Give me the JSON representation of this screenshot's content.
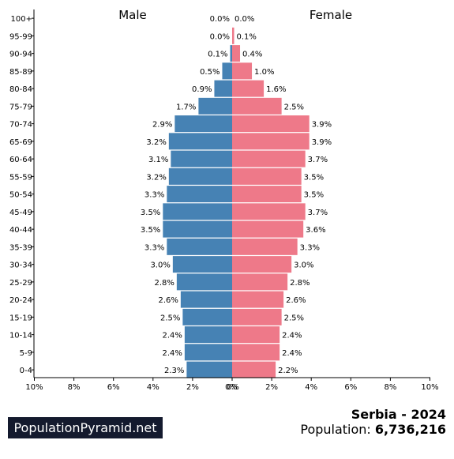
{
  "chart_data": {
    "type": "bar",
    "title": "",
    "orientation": "horizontal-back-to-back",
    "left_label": "Male",
    "right_label": "Female",
    "categories": [
      "100+",
      "95-99",
      "90-94",
      "85-89",
      "80-84",
      "75-79",
      "70-74",
      "65-69",
      "60-64",
      "55-59",
      "50-54",
      "45-49",
      "40-44",
      "35-39",
      "30-34",
      "25-29",
      "20-24",
      "15-19",
      "10-14",
      "5-9",
      "0-4"
    ],
    "series": [
      {
        "name": "Male",
        "color": "#4682b4",
        "values": [
          0.0,
          0.0,
          0.1,
          0.5,
          0.9,
          1.7,
          2.9,
          3.2,
          3.1,
          3.2,
          3.3,
          3.5,
          3.5,
          3.3,
          3.0,
          2.8,
          2.6,
          2.5,
          2.4,
          2.4,
          2.3
        ]
      },
      {
        "name": "Female",
        "color": "#ee7989",
        "values": [
          0.0,
          0.1,
          0.4,
          1.0,
          1.6,
          2.5,
          3.9,
          3.9,
          3.7,
          3.5,
          3.5,
          3.7,
          3.6,
          3.3,
          3.0,
          2.8,
          2.6,
          2.5,
          2.4,
          2.4,
          2.2
        ]
      }
    ],
    "value_labels": {
      "male": [
        "0.0%",
        "0.0%",
        "0.1%",
        "0.5%",
        "0.9%",
        "1.7%",
        "2.9%",
        "3.2%",
        "3.1%",
        "3.2%",
        "3.3%",
        "3.5%",
        "3.5%",
        "3.3%",
        "3.0%",
        "2.8%",
        "2.6%",
        "2.5%",
        "2.4%",
        "2.4%",
        "2.3%"
      ],
      "female": [
        "0.0%",
        "0.1%",
        "0.4%",
        "1.0%",
        "1.6%",
        "2.5%",
        "3.9%",
        "3.9%",
        "3.7%",
        "3.5%",
        "3.5%",
        "3.7%",
        "3.6%",
        "3.3%",
        "3.0%",
        "2.8%",
        "2.6%",
        "2.5%",
        "2.4%",
        "2.4%",
        "2.2%"
      ]
    },
    "x_ticks_left": [
      "10%",
      "8%",
      "6%",
      "4%",
      "2%",
      "0%"
    ],
    "x_ticks_right": [
      "0%",
      "2%",
      "4%",
      "6%",
      "8%",
      "10%"
    ],
    "xlim": [
      0,
      10
    ],
    "grid": false
  },
  "branding": {
    "site": "PopulationPyramid.net"
  },
  "footer": {
    "country_year": "Serbia - 2024",
    "population_label": "Population:",
    "population_value": "6,736,216"
  }
}
